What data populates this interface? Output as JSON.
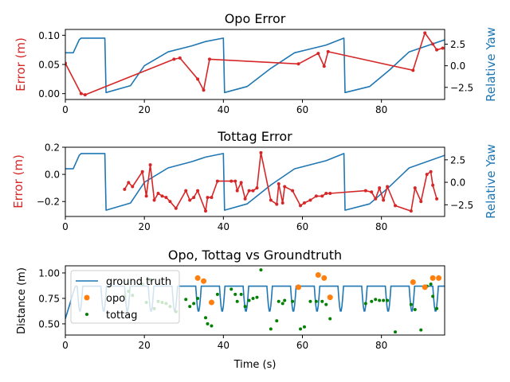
{
  "colors": {
    "red": "#d62728",
    "blue": "#1f77b4",
    "orange": "#ff7f0e",
    "green": "#008000",
    "axis": "#000000"
  },
  "chart_data": [
    {
      "type": "line",
      "title": "Opo Error",
      "xlabel": "",
      "ylabel": "Error (m)",
      "ylabel_right": "Relative Yaw",
      "xlim": [
        0,
        96
      ],
      "ylim": [
        -0.01,
        0.11
      ],
      "ylim_right": [
        -3.9,
        4.2
      ],
      "xticks": [
        "0",
        "20",
        "40",
        "60",
        "80"
      ],
      "xtick_values": [
        0,
        20,
        40,
        60,
        80
      ],
      "yticks": [
        "0.00",
        "0.05",
        "0.10"
      ],
      "ytick_values": [
        0,
        0.05,
        0.1
      ],
      "yticks_right": [
        "2.5",
        "0.0",
        "−2.5"
      ],
      "ytick_right_values": [
        2.5,
        0,
        -2.5
      ],
      "series": [
        {
          "axis": "left",
          "color": "#d62728",
          "x": [
            0,
            4,
            5,
            27.5,
            29,
            33.5,
            35,
            36.5,
            59,
            64,
            65.5,
            66.5,
            88,
            91,
            93,
            94,
            95.5
          ],
          "y": [
            0.052,
            0.0,
            -0.002,
            0.059,
            0.061,
            0.025,
            0.006,
            0.059,
            0.051,
            0.069,
            0.047,
            0.072,
            0.04,
            0.104,
            0.085,
            0.075,
            0.078
          ]
        },
        {
          "axis": "right",
          "color": "#1f77b4",
          "kind": "yaw",
          "x": [
            0,
            2,
            3.5,
            4,
            10,
            10.3,
            16.5,
            20,
            26,
            32,
            35.5,
            40,
            40.3,
            46,
            52,
            58,
            66,
            70.5,
            70.8,
            77,
            82,
            87,
            96
          ],
          "y": [
            1.5,
            1.5,
            3.0,
            3.2,
            3.2,
            -3.1,
            -2.3,
            0,
            1.6,
            2.3,
            2.8,
            3.2,
            -3.1,
            -2.4,
            -0.3,
            1.5,
            2.4,
            3.2,
            -3.1,
            -2.4,
            -0.5,
            1.6,
            3.0
          ]
        }
      ]
    },
    {
      "type": "line",
      "title": "Tottag Error",
      "xlabel": "",
      "ylabel": "Error (m)",
      "ylabel_right": "Relative Yaw",
      "xlim": [
        0,
        96
      ],
      "ylim": [
        -0.31,
        0.2
      ],
      "ylim_right": [
        -3.8,
        3.9
      ],
      "xticks": [
        "0",
        "20",
        "40",
        "60",
        "80"
      ],
      "xtick_values": [
        0,
        20,
        40,
        60,
        80
      ],
      "yticks": [
        "0.2",
        "0.0",
        "−0.2"
      ],
      "ytick_values": [
        0.2,
        0,
        -0.2
      ],
      "yticks_right": [
        "2.5",
        "0.0",
        "−2.5"
      ],
      "ytick_right_values": [
        2.5,
        0,
        -2.5
      ],
      "series": [
        {
          "axis": "left",
          "color": "#d62728",
          "x": [
            15,
            16,
            17,
            19.5,
            20.5,
            21.5,
            22.5,
            23.5,
            24.5,
            25.5,
            26.5,
            28,
            30.5,
            31.5,
            32.5,
            33.5,
            35.5,
            36,
            37,
            38.5,
            42,
            43,
            43.5,
            44.5,
            45.5,
            46.5,
            47.5,
            48.5,
            49.5,
            52,
            53.5,
            54,
            55,
            55.5,
            57.5,
            59.5,
            60.5,
            62,
            63.5,
            65,
            66,
            67,
            76,
            77.5,
            78.5,
            79.5,
            80.5,
            81.5,
            83.5,
            87.5,
            88.5,
            90,
            91.5,
            92.5,
            93,
            94
          ],
          "y": [
            -0.11,
            -0.06,
            -0.09,
            0.02,
            -0.16,
            0.07,
            -0.19,
            -0.14,
            -0.16,
            -0.17,
            -0.2,
            -0.25,
            -0.12,
            -0.19,
            -0.17,
            -0.12,
            -0.27,
            -0.17,
            -0.17,
            -0.05,
            -0.05,
            -0.05,
            -0.12,
            -0.06,
            -0.18,
            -0.12,
            -0.12,
            -0.1,
            0.16,
            -0.19,
            -0.22,
            -0.07,
            -0.21,
            -0.09,
            -0.12,
            -0.23,
            -0.21,
            -0.19,
            -0.16,
            -0.16,
            -0.14,
            -0.14,
            -0.12,
            -0.13,
            -0.18,
            -0.1,
            -0.19,
            -0.09,
            -0.23,
            -0.27,
            -0.1,
            -0.2,
            0.0,
            0.02,
            -0.08,
            -0.18
          ]
        },
        {
          "axis": "right",
          "color": "#1f77b4",
          "kind": "yaw",
          "x": [
            0,
            2,
            3.5,
            4,
            10,
            10.3,
            16.5,
            20,
            26,
            32,
            35.5,
            40,
            40.3,
            46,
            52,
            58,
            66,
            70.5,
            70.8,
            77,
            82,
            87,
            96
          ],
          "y": [
            1.5,
            1.5,
            3.0,
            3.2,
            3.2,
            -3.1,
            -2.3,
            0,
            1.6,
            2.3,
            2.8,
            3.2,
            -3.1,
            -2.4,
            -0.3,
            1.5,
            2.4,
            3.2,
            -3.1,
            -2.4,
            -0.5,
            1.6,
            3.0
          ]
        }
      ]
    },
    {
      "type": "scatter",
      "title": "Opo, Tottag vs Groundtruth",
      "xlabel": "Time (s)",
      "ylabel": "Distance (m)",
      "xlim": [
        0,
        96
      ],
      "ylim": [
        0.39,
        1.07
      ],
      "xticks": [
        "0",
        "20",
        "40",
        "60",
        "80"
      ],
      "xtick_values": [
        0,
        20,
        40,
        60,
        80
      ],
      "yticks": [
        "1.00",
        "0.75",
        "0.50"
      ],
      "ytick_values": [
        1.0,
        0.75,
        0.5
      ],
      "legend": {
        "location": "top-left",
        "entries": [
          "ground truth",
          "opo",
          "tottag"
        ]
      },
      "ground_truth": {
        "name": "ground truth",
        "color": "#1f77b4",
        "baseline": 0.87,
        "dip_min": 0.62,
        "period": 6.0,
        "first_dip": 3.0,
        "start": [
          0,
          0.55
        ]
      },
      "opo": {
        "name": "opo",
        "color": "#ff7f0e",
        "x": [
          33.5,
          35,
          37,
          59,
          64,
          65.5,
          67,
          88,
          91,
          93,
          94.5
        ],
        "y": [
          0.95,
          0.92,
          0.71,
          0.86,
          0.98,
          0.95,
          0.76,
          0.91,
          0.86,
          0.95,
          0.95
        ]
      },
      "tottag": {
        "name": "tottag",
        "color": "#008000",
        "x": [
          15,
          16,
          17,
          19.5,
          20.5,
          21.5,
          22.5,
          23.5,
          24.5,
          25.5,
          26.5,
          28,
          30.5,
          31.5,
          32.5,
          33.5,
          35.5,
          36,
          37,
          38.5,
          42,
          43,
          43.5,
          44.5,
          45.5,
          46.5,
          47.5,
          48.5,
          49.5,
          52,
          53.5,
          54,
          55,
          55.5,
          57.5,
          59.5,
          60.5,
          62,
          63.5,
          65,
          66,
          67,
          76,
          77.5,
          78.5,
          79.5,
          80.5,
          81.5,
          83.5,
          87.5,
          88.5,
          90,
          91.5,
          92.5,
          93,
          94
        ],
        "y": [
          0.77,
          0.82,
          0.78,
          0.89,
          0.71,
          0.93,
          0.65,
          0.72,
          0.71,
          0.7,
          0.67,
          0.62,
          0.74,
          0.67,
          0.7,
          0.75,
          0.56,
          0.5,
          0.48,
          0.79,
          0.84,
          0.79,
          0.72,
          0.79,
          0.67,
          0.73,
          0.75,
          0.76,
          1.03,
          0.45,
          0.53,
          0.72,
          0.7,
          0.73,
          0.72,
          0.45,
          0.47,
          0.72,
          0.72,
          0.72,
          0.69,
          0.55,
          0.7,
          0.72,
          0.74,
          0.73,
          0.73,
          0.73,
          0.42,
          0.69,
          0.64,
          0.44,
          0.87,
          0.89,
          0.77,
          0.65
        ]
      }
    }
  ]
}
